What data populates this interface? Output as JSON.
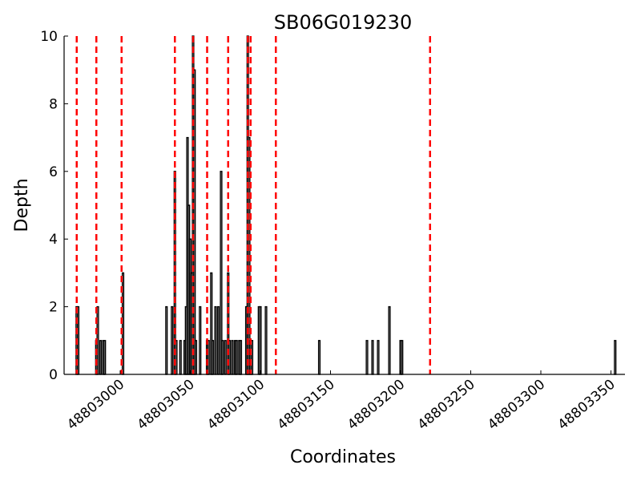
{
  "chart_data": {
    "type": "bar",
    "title": "SB06G019230",
    "xlabel": "Coordinates",
    "ylabel": "Depth",
    "xlim": [
      48802960,
      48803360
    ],
    "ylim": [
      0,
      10
    ],
    "xticks": [
      48803000,
      48803050,
      48803100,
      48803150,
      48803200,
      48803250,
      48803300,
      48803350
    ],
    "xtick_labels": [
      "48803000",
      "48803050",
      "48803100",
      "48803150",
      "48803200",
      "48803250",
      "48803300",
      "48803350"
    ],
    "yticks": [
      0,
      2,
      4,
      6,
      8,
      10
    ],
    "ytick_labels": [
      "0",
      "2",
      "4",
      "6",
      "8",
      "10"
    ],
    "grid": false,
    "bar_color": "#000000",
    "marker_color": "#ff0000",
    "bars": [
      {
        "x": 48802969,
        "y": 2
      },
      {
        "x": 48802970,
        "y": 2
      },
      {
        "x": 48802983,
        "y": 1
      },
      {
        "x": 48802984,
        "y": 2
      },
      {
        "x": 48802986,
        "y": 1
      },
      {
        "x": 48802988,
        "y": 1
      },
      {
        "x": 48802989,
        "y": 1
      },
      {
        "x": 48803002,
        "y": 3
      },
      {
        "x": 48803033,
        "y": 2
      },
      {
        "x": 48803037,
        "y": 2
      },
      {
        "x": 48803039,
        "y": 6
      },
      {
        "x": 48803040,
        "y": 1
      },
      {
        "x": 48803043,
        "y": 1
      },
      {
        "x": 48803046,
        "y": 1
      },
      {
        "x": 48803047,
        "y": 2
      },
      {
        "x": 48803048,
        "y": 7
      },
      {
        "x": 48803049,
        "y": 5
      },
      {
        "x": 48803050,
        "y": 4
      },
      {
        "x": 48803051,
        "y": 3
      },
      {
        "x": 48803052,
        "y": 10
      },
      {
        "x": 48803053,
        "y": 9
      },
      {
        "x": 48803054,
        "y": 1
      },
      {
        "x": 48803057,
        "y": 2
      },
      {
        "x": 48803062,
        "y": 1
      },
      {
        "x": 48803063,
        "y": 1
      },
      {
        "x": 48803065,
        "y": 3
      },
      {
        "x": 48803066,
        "y": 1
      },
      {
        "x": 48803068,
        "y": 2
      },
      {
        "x": 48803070,
        "y": 2
      },
      {
        "x": 48803072,
        "y": 6
      },
      {
        "x": 48803073,
        "y": 1
      },
      {
        "x": 48803075,
        "y": 1
      },
      {
        "x": 48803077,
        "y": 3
      },
      {
        "x": 48803078,
        "y": 1
      },
      {
        "x": 48803080,
        "y": 1
      },
      {
        "x": 48803082,
        "y": 1
      },
      {
        "x": 48803083,
        "y": 1
      },
      {
        "x": 48803085,
        "y": 1
      },
      {
        "x": 48803086,
        "y": 1
      },
      {
        "x": 48803090,
        "y": 2
      },
      {
        "x": 48803091,
        "y": 10
      },
      {
        "x": 48803092,
        "y": 7
      },
      {
        "x": 48803093,
        "y": 1
      },
      {
        "x": 48803094,
        "y": 1
      },
      {
        "x": 48803099,
        "y": 2
      },
      {
        "x": 48803100,
        "y": 2
      },
      {
        "x": 48803104,
        "y": 2
      },
      {
        "x": 48803142,
        "y": 1
      },
      {
        "x": 48803176,
        "y": 1
      },
      {
        "x": 48803180,
        "y": 1
      },
      {
        "x": 48803184,
        "y": 1
      },
      {
        "x": 48803192,
        "y": 2
      },
      {
        "x": 48803200,
        "y": 1
      },
      {
        "x": 48803201,
        "y": 1
      },
      {
        "x": 48803353,
        "y": 1
      }
    ],
    "dashed_markers": [
      48802969,
      48802983,
      48803001,
      48803039,
      48803052,
      48803062,
      48803077,
      48803093,
      48803091,
      48803111,
      48803221
    ]
  }
}
